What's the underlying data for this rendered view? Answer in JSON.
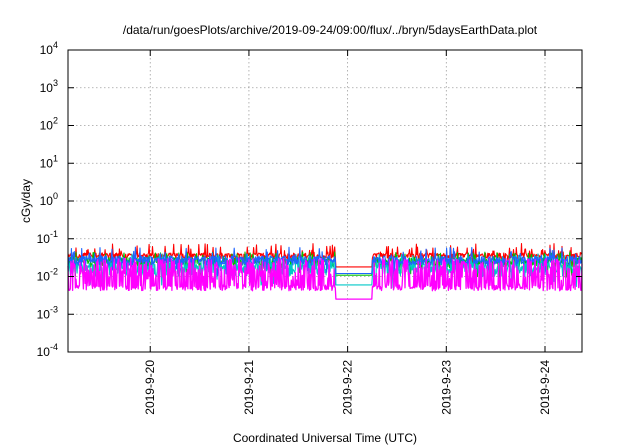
{
  "chart_data": {
    "type": "line",
    "title": "/data/run/goesPlots/archive/2019-09-24/09:00/flux/../bryn/5daysEarthData.plot",
    "xlabel": "Coordinated Universal Time (UTC)",
    "ylabel": "cGy/day",
    "yscale": "log",
    "ylim": [
      0.0001,
      10000
    ],
    "y_ticks": [
      {
        "value": 0.0001,
        "base": "10",
        "exp": "-4"
      },
      {
        "value": 0.001,
        "base": "10",
        "exp": "-3"
      },
      {
        "value": 0.01,
        "base": "10",
        "exp": "-2"
      },
      {
        "value": 0.1,
        "base": "10",
        "exp": "-1"
      },
      {
        "value": 1,
        "base": "10",
        "exp": "0"
      },
      {
        "value": 10,
        "base": "10",
        "exp": "1"
      },
      {
        "value": 100,
        "base": "10",
        "exp": "2"
      },
      {
        "value": 1000,
        "base": "10",
        "exp": "3"
      },
      {
        "value": 10000,
        "base": "10",
        "exp": "4"
      }
    ],
    "x_range_days": [
      "2019-09-19 04:00",
      "2019-09-24 09:00"
    ],
    "x_ticks": [
      "2019-9-20",
      "2019-9-21",
      "2019-9-22",
      "2019-9-23",
      "2019-9-24"
    ],
    "grid": true,
    "legend": "none",
    "data_gap": [
      "2019-09-21 21:00",
      "2019-09-22 06:00"
    ],
    "series": [
      {
        "color": "#ff0000",
        "base_low": 0.03,
        "base_high": 0.042,
        "spike_max": 0.075
      },
      {
        "color": "#00c000",
        "base_low": 0.018,
        "base_high": 0.032,
        "spike_max": 0.045
      },
      {
        "color": "#00c8c8",
        "base_low": 0.01,
        "base_high": 0.024,
        "spike_max": 0.04
      },
      {
        "color": "#1e64ff",
        "base_low": 0.02,
        "base_high": 0.035,
        "spike_max": 0.06
      },
      {
        "color": "#ff00ff",
        "base_low": 0.0042,
        "base_high": 0.006,
        "spike_max": 0.03
      }
    ]
  }
}
